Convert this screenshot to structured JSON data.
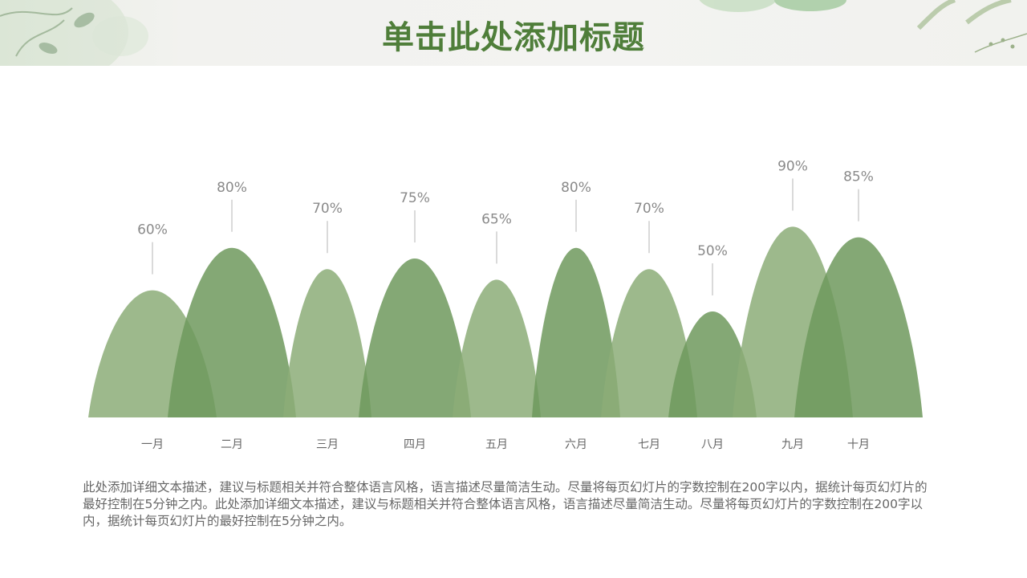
{
  "title": "单击此处添加标题",
  "description": "此处添加详细文本描述，建议与标题相关并符合整体语言风格，语言描述尽量简洁生动。尽量将每页幻灯片的字数控制在200字以内，据统计每页幻灯片的最好控制在5分钟之内。此处添加详细文本描述，建议与标题相关并符合整体语言风格，语言描述尽量简洁生动。尽量将每页幻灯片的字数控制在200字以内，据统计每页幻灯片的最好控制在5分钟之内。",
  "colors": {
    "title": "#4f7e3a",
    "light_green": "#8cad78",
    "dark_green": "#6f995d",
    "text_gray": "#666666"
  },
  "icons": [
    "leaf-decoration-left",
    "leaf-decoration-right"
  ],
  "chart_data": {
    "type": "area",
    "categories": [
      "一月",
      "二月",
      "三月",
      "四月",
      "五月",
      "六月",
      "七月",
      "八月",
      "九月",
      "十月"
    ],
    "values": [
      60,
      80,
      70,
      75,
      65,
      80,
      70,
      50,
      90,
      85
    ],
    "value_labels": [
      "60%",
      "80%",
      "70%",
      "75%",
      "65%",
      "80%",
      "70%",
      "50%",
      "90%",
      "85%"
    ],
    "unit": "%",
    "ylim": [
      0,
      100
    ],
    "grid": false,
    "legend": "none",
    "style": "overlapping-peaks"
  }
}
